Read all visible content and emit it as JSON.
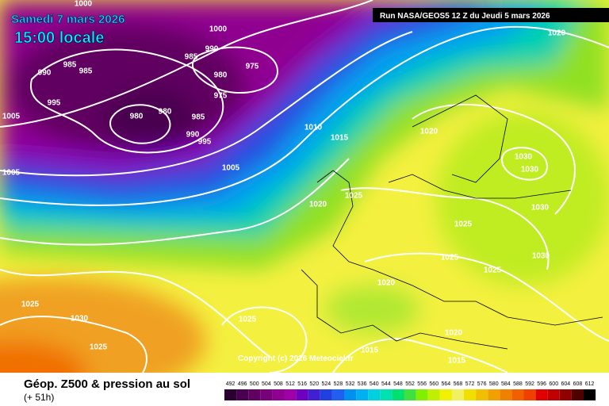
{
  "header": {
    "date": "Samedi 7 mars 2026",
    "time": "15:00 locale",
    "run": "Run NASA/GEOS5 12 Z du Jeudi 5 mars 2026"
  },
  "isobar_labels": [
    "1000",
    "1000",
    "990",
    "985",
    "975",
    "980",
    "985",
    "985",
    "990",
    "995",
    "980",
    "980",
    "985",
    "975",
    "990",
    "995",
    "1005",
    "1005",
    "1005",
    "1010",
    "1015",
    "1020",
    "1020",
    "1030",
    "1030",
    "1025",
    "1020",
    "1025",
    "1030",
    "1025",
    "1030",
    "1025",
    "1020",
    "1025",
    "1030",
    "1025",
    "1025",
    "1015",
    "1020",
    "1015"
  ],
  "copyright": "Copyright (c) 2026 Meteociel.fr",
  "footer": {
    "title": "Géop. Z500 & pression au sol",
    "lead": "(+ 51h)"
  },
  "legend": {
    "values": [
      492,
      496,
      500,
      504,
      508,
      512,
      516,
      520,
      524,
      528,
      532,
      536,
      540,
      544,
      548,
      552,
      556,
      560,
      564,
      568,
      572,
      576,
      580,
      584,
      588,
      592,
      596,
      600,
      604,
      608,
      612
    ],
    "colors": [
      "#2a0030",
      "#4a0050",
      "#600060",
      "#780078",
      "#900090",
      "#a000a8",
      "#7000c0",
      "#4020d0",
      "#2040e0",
      "#2060f0",
      "#0090f0",
      "#00b0f0",
      "#00d0e0",
      "#00e0b0",
      "#00e070",
      "#40e040",
      "#80f000",
      "#c0f000",
      "#f0f000",
      "#f0f060",
      "#f0e000",
      "#f0c000",
      "#f0a000",
      "#f08000",
      "#f06000",
      "#f04000",
      "#e00000",
      "#c00000",
      "#900000",
      "#500000",
      "#000000"
    ]
  }
}
